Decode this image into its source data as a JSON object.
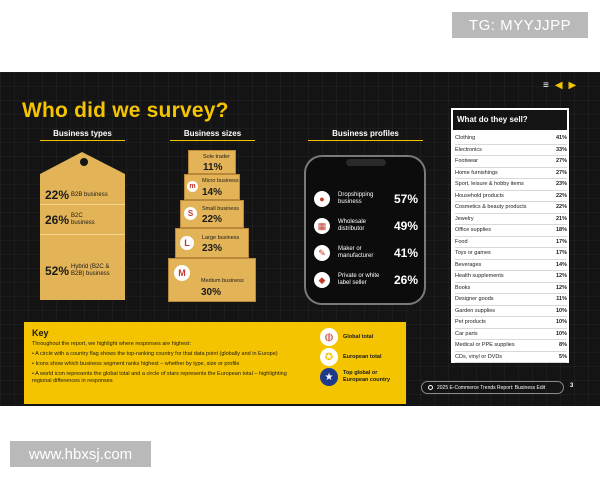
{
  "watermarks": {
    "top": "TG: MYYJJPP",
    "bottom": "www.hbxsj.com"
  },
  "slide": {
    "title": "Who did we survey?",
    "sections": {
      "types": "Business types",
      "sizes": "Business sizes",
      "profiles": "Business profiles"
    },
    "business_types": [
      {
        "pct": "22%",
        "label": "B2B business"
      },
      {
        "pct": "26%",
        "label": "B2C business"
      },
      {
        "pct": "52%",
        "label": "Hybrid (B2C & B2B) business"
      }
    ],
    "business_sizes": [
      {
        "letter": "",
        "label": "Sole trader",
        "pct": "11%"
      },
      {
        "letter": "m",
        "label": "Micro business",
        "pct": "14%"
      },
      {
        "letter": "S",
        "label": "Small business",
        "pct": "22%"
      },
      {
        "letter": "L",
        "label": "Large business",
        "pct": "23%"
      },
      {
        "letter": "M",
        "label": "Medium business",
        "pct": "30%"
      }
    ],
    "business_profiles": [
      {
        "icon": "globe-icon",
        "label": "Dropshipping business",
        "pct": "57%"
      },
      {
        "icon": "warehouse-icon",
        "label": "Wholesale distributor",
        "pct": "49%"
      },
      {
        "icon": "tools-icon",
        "label": "Maker or manufacturer",
        "pct": "41%"
      },
      {
        "icon": "tag-icon",
        "label": "Private or white label seller",
        "pct": "26%"
      }
    ],
    "sell_table": {
      "title": "What do they sell?",
      "rows": [
        {
          "label": "Clothing",
          "value": "41%"
        },
        {
          "label": "Electronics",
          "value": "33%"
        },
        {
          "label": "Footwear",
          "value": "27%"
        },
        {
          "label": "Home furnishings",
          "value": "27%"
        },
        {
          "label": "Sport, leisure & hobby items",
          "value": "23%"
        },
        {
          "label": "Household products",
          "value": "22%"
        },
        {
          "label": "Cosmetics & beauty products",
          "value": "22%"
        },
        {
          "label": "Jewelry",
          "value": "21%"
        },
        {
          "label": "Office supplies",
          "value": "18%"
        },
        {
          "label": "Food",
          "value": "17%"
        },
        {
          "label": "Toys or games",
          "value": "17%"
        },
        {
          "label": "Beverages",
          "value": "14%"
        },
        {
          "label": "Health supplements",
          "value": "12%"
        },
        {
          "label": "Books",
          "value": "12%"
        },
        {
          "label": "Designer goods",
          "value": "11%"
        },
        {
          "label": "Garden supplies",
          "value": "10%"
        },
        {
          "label": "Pet products",
          "value": "10%"
        },
        {
          "label": "Car parts",
          "value": "10%"
        },
        {
          "label": "Medical or PPE supplies",
          "value": "8%"
        },
        {
          "label": "CDs, vinyl or DVDs",
          "value": "5%"
        }
      ]
    },
    "key": {
      "title": "Key",
      "intro": "Throughout the report, we highlight where responses are highest:",
      "bullets": [
        "A circle with a country flag shows the top-ranking country for that data point (globally and in Europe)",
        "Icons show which business segment ranks highest – whether by type, size or profile",
        "A world icon represents the global total and a circle of stars represents the European total – highlighting regional differences in responses"
      ],
      "legend": [
        {
          "icon": "globe-icon",
          "label": "Global total"
        },
        {
          "icon": "eu-stars-icon",
          "label": "European total"
        },
        {
          "icon": "flag-icon",
          "label": "Top global or European country"
        }
      ]
    },
    "footer": "2025 E-Commerce Trends Report: Business Edit",
    "page": "3",
    "colors": {
      "accent": "#f5c400",
      "box": "#e2b457",
      "bg": "#141414"
    }
  }
}
